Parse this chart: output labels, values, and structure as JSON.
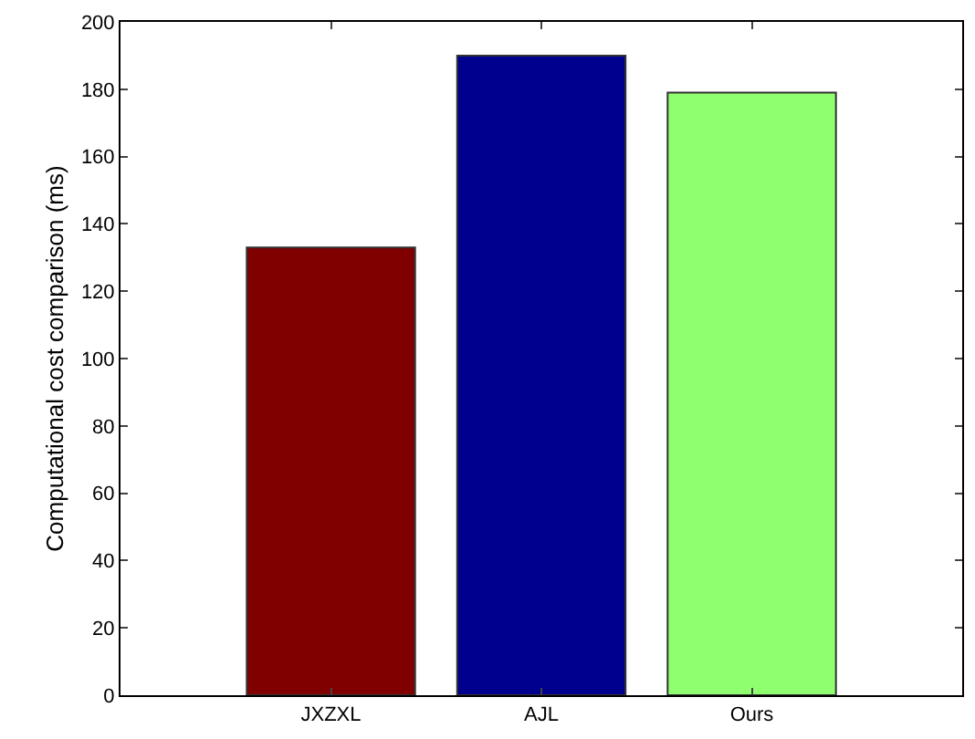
{
  "chart_data": {
    "type": "bar",
    "ylabel": "Computational cost comparison (ms)",
    "categories": [
      "JXZXL",
      "AJL",
      "Ours"
    ],
    "values": [
      133,
      190,
      179
    ],
    "colors": [
      "#800000",
      "#00008f",
      "#8fff6f"
    ],
    "ylim": [
      0,
      200
    ],
    "yticks": [
      0,
      20,
      40,
      60,
      80,
      100,
      120,
      140,
      160,
      180,
      200
    ]
  }
}
